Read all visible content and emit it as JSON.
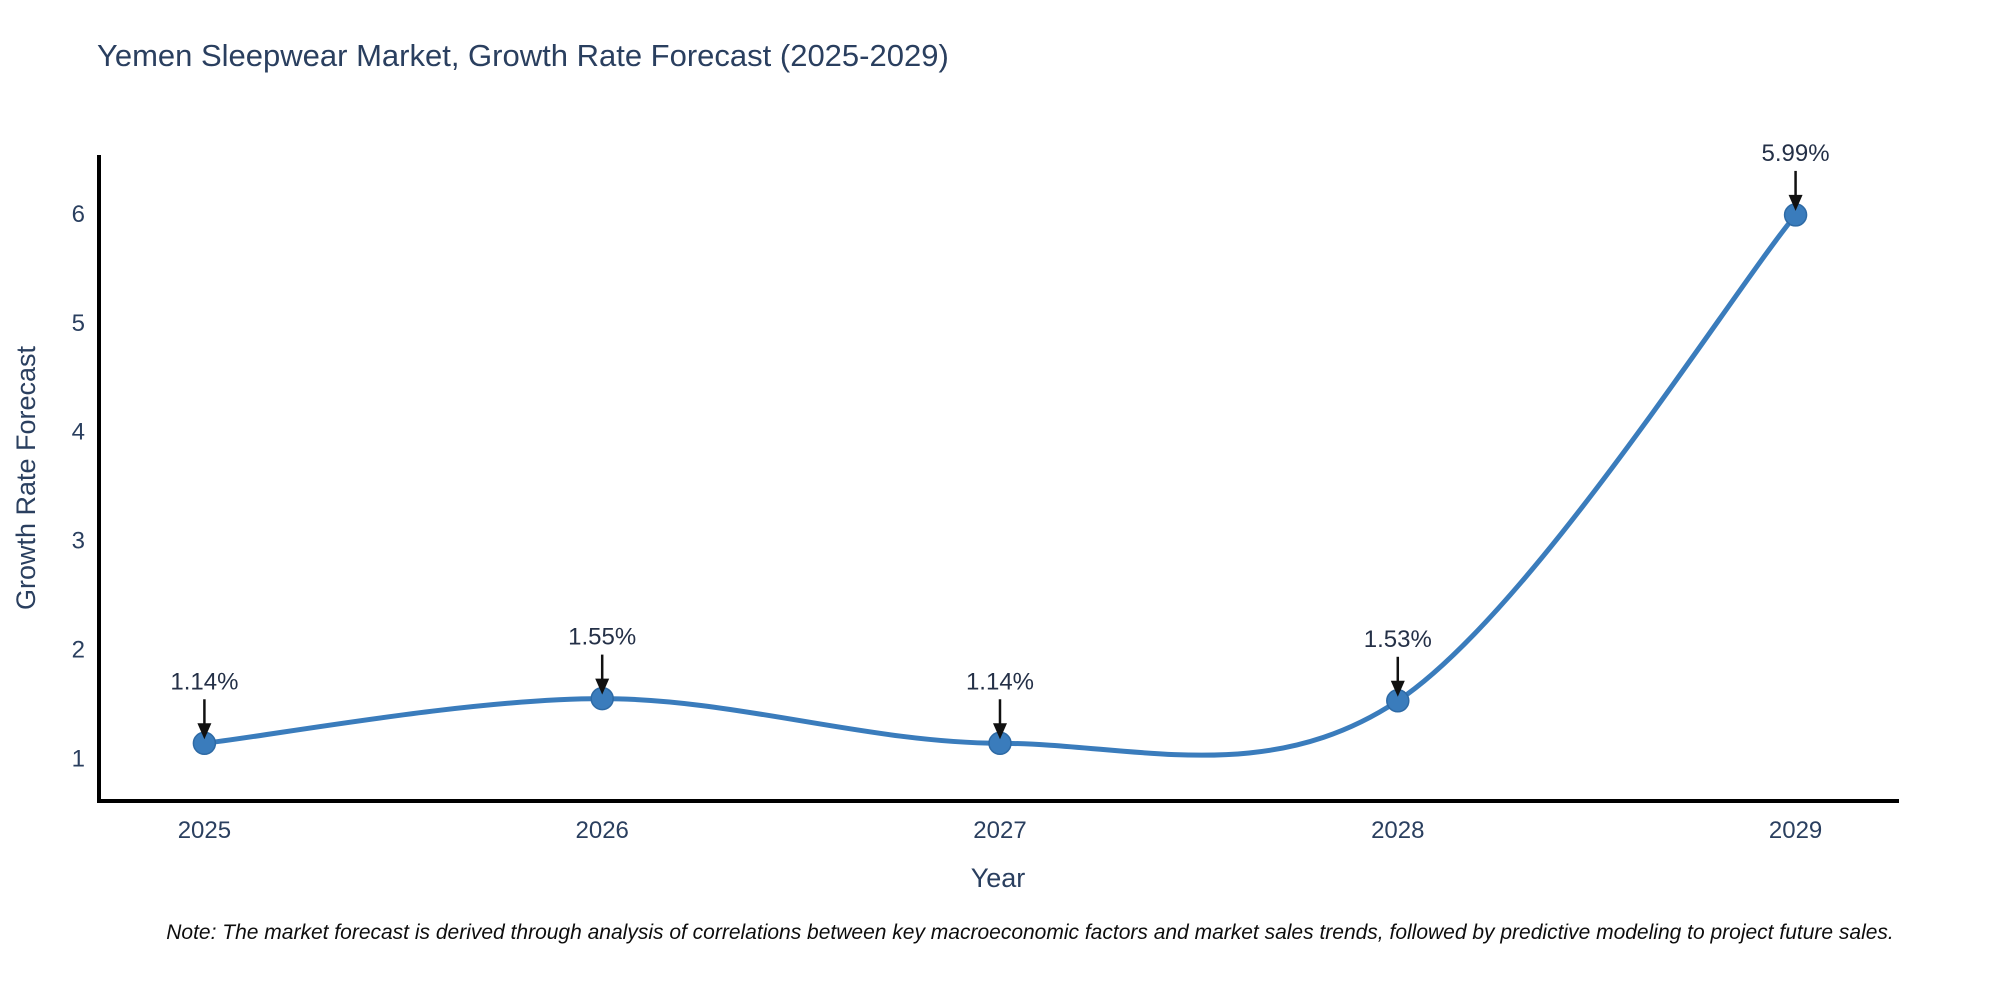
{
  "title": "Yemen Sleepwear Market, Growth Rate Forecast (2025-2029)",
  "note": "Note: The market forecast is derived through analysis of correlations between key macroeconomic factors and market sales trends, followed by predictive modeling to project future sales.",
  "chart_data": {
    "type": "line",
    "line_shape": "spline",
    "x": [
      2025,
      2026,
      2027,
      2028,
      2029
    ],
    "values": [
      1.14,
      1.55,
      1.14,
      1.53,
      5.99
    ],
    "point_labels": [
      "1.14%",
      "1.55%",
      "1.14%",
      "1.53%",
      "5.99%"
    ],
    "xlabel": "Year",
    "ylabel": "Growth Rate Forecast",
    "yticks": [
      1,
      2,
      3,
      4,
      5,
      6
    ],
    "xticks": [
      2025,
      2026,
      2027,
      2028,
      2029
    ],
    "xlim": [
      2024.73,
      2029.26
    ],
    "ylim": [
      0.61,
      6.54
    ],
    "grid": false,
    "legend": "none",
    "colors": {
      "line": "#3a7cbc",
      "marker": "#3a7cbc",
      "marker_edge": "#2e6aa5",
      "axis": "#000000",
      "tick_text": "#2a3f5f",
      "axis_title_text": "#2a3f5f",
      "annotation_text": "#243047",
      "arrow": "#111111"
    }
  }
}
